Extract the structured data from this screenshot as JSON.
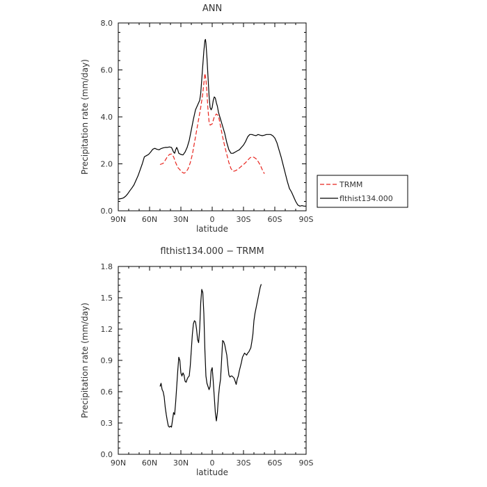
{
  "chart_data": [
    {
      "type": "line",
      "title": "ANN",
      "xlabel": "latitude",
      "ylabel": "Precipitation rate (mm/day)",
      "xlim": [
        -90,
        90
      ],
      "ylim": [
        0,
        8
      ],
      "xticks": [
        -90,
        -60,
        -30,
        0,
        30,
        60,
        90
      ],
      "xtick_labels": [
        "90N",
        "60N",
        "30N",
        "0",
        "30S",
        "60S",
        "90S"
      ],
      "yticks": [
        0,
        2,
        4,
        6,
        8
      ],
      "ytick_labels": [
        "0.0",
        "2.0",
        "4.0",
        "6.0",
        "8.0"
      ],
      "legend_position": "right",
      "series": [
        {
          "name": "TRMM",
          "color": "#e8231c",
          "dash": "dashed",
          "points": [
            [
              -50,
              1.97
            ],
            [
              -47,
              2.02
            ],
            [
              -45,
              2.15
            ],
            [
              -43,
              2.3
            ],
            [
              -41,
              2.4
            ],
            [
              -39,
              2.42
            ],
            [
              -37,
              2.3
            ],
            [
              -35,
              2.05
            ],
            [
              -33,
              1.85
            ],
            [
              -31,
              1.75
            ],
            [
              -29,
              1.65
            ],
            [
              -27,
              1.6
            ],
            [
              -25,
              1.65
            ],
            [
              -23,
              1.8
            ],
            [
              -21,
              2.05
            ],
            [
              -19,
              2.4
            ],
            [
              -17,
              2.9
            ],
            [
              -15,
              3.4
            ],
            [
              -13,
              3.9
            ],
            [
              -11,
              4.4
            ],
            [
              -9,
              5.0
            ],
            [
              -7,
              5.85
            ],
            [
              -6,
              5.6
            ],
            [
              -5,
              5.0
            ],
            [
              -4,
              4.3
            ],
            [
              -3,
              3.8
            ],
            [
              -2,
              3.65
            ],
            [
              0,
              3.7
            ],
            [
              2,
              4.0
            ],
            [
              4,
              4.12
            ],
            [
              6,
              4.05
            ],
            [
              8,
              3.6
            ],
            [
              10,
              3.15
            ],
            [
              12,
              2.75
            ],
            [
              14,
              2.4
            ],
            [
              16,
              2.05
            ],
            [
              18,
              1.8
            ],
            [
              20,
              1.68
            ],
            [
              22,
              1.7
            ],
            [
              24,
              1.75
            ],
            [
              26,
              1.82
            ],
            [
              28,
              1.9
            ],
            [
              30,
              1.97
            ],
            [
              32,
              2.05
            ],
            [
              34,
              2.15
            ],
            [
              36,
              2.25
            ],
            [
              38,
              2.3
            ],
            [
              40,
              2.28
            ],
            [
              42,
              2.22
            ],
            [
              44,
              2.1
            ],
            [
              46,
              1.95
            ],
            [
              48,
              1.75
            ],
            [
              50,
              1.58
            ]
          ]
        },
        {
          "name": "flthist134.000",
          "color": "#000000",
          "dash": "solid",
          "points": [
            [
              -90,
              0.5
            ],
            [
              -87,
              0.52
            ],
            [
              -85,
              0.55
            ],
            [
              -83,
              0.62
            ],
            [
              -81,
              0.72
            ],
            [
              -79,
              0.85
            ],
            [
              -77,
              0.97
            ],
            [
              -75,
              1.1
            ],
            [
              -73,
              1.3
            ],
            [
              -71,
              1.5
            ],
            [
              -69,
              1.75
            ],
            [
              -67,
              2.0
            ],
            [
              -65,
              2.3
            ],
            [
              -63,
              2.35
            ],
            [
              -61,
              2.4
            ],
            [
              -59,
              2.5
            ],
            [
              -57,
              2.62
            ],
            [
              -55,
              2.66
            ],
            [
              -53,
              2.62
            ],
            [
              -51,
              2.6
            ],
            [
              -49,
              2.65
            ],
            [
              -47,
              2.68
            ],
            [
              -45,
              2.7
            ],
            [
              -43,
              2.7
            ],
            [
              -41,
              2.72
            ],
            [
              -39,
              2.7
            ],
            [
              -38,
              2.6
            ],
            [
              -37,
              2.5
            ],
            [
              -36,
              2.45
            ],
            [
              -35,
              2.6
            ],
            [
              -34,
              2.7
            ],
            [
              -33,
              2.6
            ],
            [
              -32,
              2.45
            ],
            [
              -30,
              2.4
            ],
            [
              -28,
              2.38
            ],
            [
              -26,
              2.5
            ],
            [
              -24,
              2.7
            ],
            [
              -22,
              3.0
            ],
            [
              -20,
              3.45
            ],
            [
              -18,
              3.9
            ],
            [
              -16,
              4.3
            ],
            [
              -14,
              4.5
            ],
            [
              -12,
              4.7
            ],
            [
              -11,
              5.0
            ],
            [
              -10,
              5.6
            ],
            [
              -9,
              6.2
            ],
            [
              -8,
              6.8
            ],
            [
              -7,
              7.25
            ],
            [
              -6.5,
              7.3
            ],
            [
              -6,
              7.15
            ],
            [
              -5,
              6.5
            ],
            [
              -4,
              5.7
            ],
            [
              -3,
              4.9
            ],
            [
              -2,
              4.4
            ],
            [
              -1,
              4.3
            ],
            [
              0,
              4.4
            ],
            [
              1,
              4.7
            ],
            [
              2,
              4.85
            ],
            [
              3,
              4.8
            ],
            [
              4,
              4.6
            ],
            [
              5,
              4.45
            ],
            [
              6,
              4.2
            ],
            [
              8,
              3.9
            ],
            [
              10,
              3.6
            ],
            [
              12,
              3.3
            ],
            [
              14,
              2.9
            ],
            [
              16,
              2.6
            ],
            [
              18,
              2.45
            ],
            [
              20,
              2.45
            ],
            [
              22,
              2.5
            ],
            [
              24,
              2.55
            ],
            [
              26,
              2.6
            ],
            [
              28,
              2.7
            ],
            [
              30,
              2.8
            ],
            [
              32,
              2.95
            ],
            [
              34,
              3.15
            ],
            [
              36,
              3.25
            ],
            [
              38,
              3.25
            ],
            [
              40,
              3.22
            ],
            [
              42,
              3.2
            ],
            [
              44,
              3.25
            ],
            [
              46,
              3.22
            ],
            [
              48,
              3.2
            ],
            [
              50,
              3.22
            ],
            [
              52,
              3.25
            ],
            [
              54,
              3.25
            ],
            [
              56,
              3.25
            ],
            [
              58,
              3.2
            ],
            [
              60,
              3.1
            ],
            [
              62,
              2.9
            ],
            [
              64,
              2.6
            ],
            [
              66,
              2.3
            ],
            [
              68,
              1.95
            ],
            [
              70,
              1.6
            ],
            [
              72,
              1.25
            ],
            [
              74,
              0.95
            ],
            [
              76,
              0.8
            ],
            [
              78,
              0.6
            ],
            [
              80,
              0.4
            ],
            [
              82,
              0.25
            ],
            [
              84,
              0.2
            ],
            [
              86,
              0.22
            ],
            [
              88,
              0.2
            ],
            [
              90,
              0.2
            ]
          ]
        }
      ]
    },
    {
      "type": "line",
      "title": "flthist134.000 − TRMM",
      "xlabel": "latitude",
      "ylabel": "Precipitation rate (mm/day)",
      "xlim": [
        -90,
        90
      ],
      "ylim": [
        0,
        1.8
      ],
      "xticks": [
        -90,
        -60,
        -30,
        0,
        30,
        60,
        90
      ],
      "xtick_labels": [
        "90N",
        "60N",
        "30N",
        "0",
        "30S",
        "60S",
        "90S"
      ],
      "yticks": [
        0,
        0.3,
        0.6,
        0.9,
        1.2,
        1.5,
        1.8
      ],
      "ytick_labels": [
        "0.0",
        "0.3",
        "0.6",
        "0.9",
        "1.2",
        "1.5",
        "1.8"
      ],
      "series": [
        {
          "color": "#000000",
          "dash": "solid",
          "points": [
            [
              -50,
              0.65
            ],
            [
              -49,
              0.68
            ],
            [
              -48,
              0.62
            ],
            [
              -47,
              0.6
            ],
            [
              -46,
              0.55
            ],
            [
              -45,
              0.45
            ],
            [
              -44,
              0.38
            ],
            [
              -43,
              0.32
            ],
            [
              -42,
              0.27
            ],
            [
              -41,
              0.26
            ],
            [
              -40,
              0.27
            ],
            [
              -39,
              0.26
            ],
            [
              -38,
              0.33
            ],
            [
              -37,
              0.4
            ],
            [
              -36,
              0.38
            ],
            [
              -35,
              0.5
            ],
            [
              -34,
              0.65
            ],
            [
              -33,
              0.8
            ],
            [
              -32,
              0.93
            ],
            [
              -31,
              0.9
            ],
            [
              -30,
              0.78
            ],
            [
              -29,
              0.75
            ],
            [
              -28,
              0.78
            ],
            [
              -27,
              0.76
            ],
            [
              -26,
              0.7
            ],
            [
              -25,
              0.69
            ],
            [
              -24,
              0.72
            ],
            [
              -23,
              0.74
            ],
            [
              -22,
              0.75
            ],
            [
              -21,
              0.85
            ],
            [
              -20,
              1.0
            ],
            [
              -19,
              1.15
            ],
            [
              -18,
              1.25
            ],
            [
              -17,
              1.28
            ],
            [
              -16,
              1.27
            ],
            [
              -15,
              1.2
            ],
            [
              -14,
              1.1
            ],
            [
              -13,
              1.07
            ],
            [
              -12,
              1.2
            ],
            [
              -11,
              1.45
            ],
            [
              -10,
              1.58
            ],
            [
              -9,
              1.55
            ],
            [
              -8,
              1.35
            ],
            [
              -7,
              1.0
            ],
            [
              -6,
              0.75
            ],
            [
              -5,
              0.68
            ],
            [
              -4,
              0.65
            ],
            [
              -3,
              0.62
            ],
            [
              -2,
              0.65
            ],
            [
              -1,
              0.8
            ],
            [
              0,
              0.83
            ],
            [
              1,
              0.7
            ],
            [
              2,
              0.55
            ],
            [
              3,
              0.4
            ],
            [
              4,
              0.32
            ],
            [
              5,
              0.4
            ],
            [
              6,
              0.55
            ],
            [
              7,
              0.65
            ],
            [
              8,
              0.72
            ],
            [
              9,
              0.9
            ],
            [
              10,
              1.09
            ],
            [
              11,
              1.08
            ],
            [
              12,
              1.05
            ],
            [
              13,
              1.0
            ],
            [
              14,
              0.95
            ],
            [
              15,
              0.85
            ],
            [
              16,
              0.76
            ],
            [
              17,
              0.74
            ],
            [
              18,
              0.75
            ],
            [
              19,
              0.75
            ],
            [
              20,
              0.74
            ],
            [
              21,
              0.73
            ],
            [
              22,
              0.7
            ],
            [
              23,
              0.67
            ],
            [
              24,
              0.72
            ],
            [
              25,
              0.75
            ],
            [
              26,
              0.8
            ],
            [
              27,
              0.84
            ],
            [
              28,
              0.88
            ],
            [
              29,
              0.93
            ],
            [
              30,
              0.95
            ],
            [
              31,
              0.97
            ],
            [
              32,
              0.96
            ],
            [
              33,
              0.95
            ],
            [
              34,
              0.97
            ],
            [
              35,
              0.98
            ],
            [
              36,
              1.0
            ],
            [
              37,
              1.02
            ],
            [
              38,
              1.08
            ],
            [
              39,
              1.15
            ],
            [
              40,
              1.28
            ],
            [
              41,
              1.35
            ],
            [
              42,
              1.4
            ],
            [
              43,
              1.45
            ],
            [
              44,
              1.5
            ],
            [
              45,
              1.55
            ],
            [
              46,
              1.6
            ],
            [
              47,
              1.63
            ]
          ]
        }
      ]
    }
  ]
}
